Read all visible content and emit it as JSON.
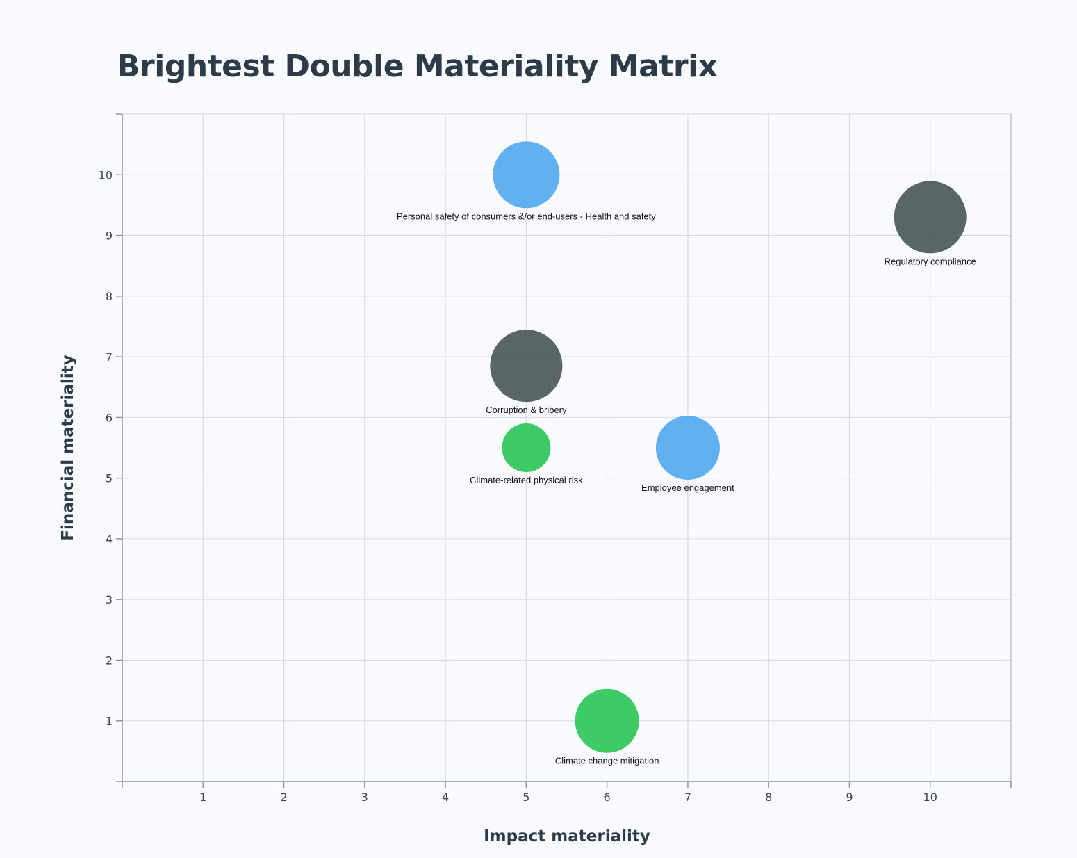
{
  "title": "Brightest Double Materiality Matrix",
  "chart_data": {
    "type": "scatter",
    "title": "Brightest Double Materiality Matrix",
    "xlabel": "Impact materiality",
    "ylabel": "Financial materiality",
    "xlim": [
      0,
      11
    ],
    "ylim": [
      0,
      11
    ],
    "x_ticks": [
      1,
      2,
      3,
      4,
      5,
      6,
      7,
      8,
      9,
      10
    ],
    "y_ticks": [
      1,
      2,
      3,
      4,
      5,
      6,
      7,
      8,
      9,
      10
    ],
    "grid": true,
    "colors": {
      "blue": "#55abf0",
      "dark": "#4d5a59",
      "green": "#2fc759"
    },
    "points": [
      {
        "label": "Personal safety of consumers &/or end-users - Health and safety",
        "x": 5,
        "y": 10,
        "size": 48,
        "color": "#55abf0"
      },
      {
        "label": "Regulatory compliance",
        "x": 10,
        "y": 9.3,
        "size": 52,
        "color": "#4d5a59"
      },
      {
        "label": "Corruption & bribery",
        "x": 5,
        "y": 6.85,
        "size": 52,
        "color": "#4d5a59"
      },
      {
        "label": "Climate-related physical risk",
        "x": 5,
        "y": 5.5,
        "size": 35,
        "color": "#2fc759"
      },
      {
        "label": "Employee engagement",
        "x": 7,
        "y": 5.5,
        "size": 46,
        "color": "#55abf0"
      },
      {
        "label": "Climate change mitigation",
        "x": 6,
        "y": 1,
        "size": 46,
        "color": "#2fc759"
      }
    ]
  }
}
